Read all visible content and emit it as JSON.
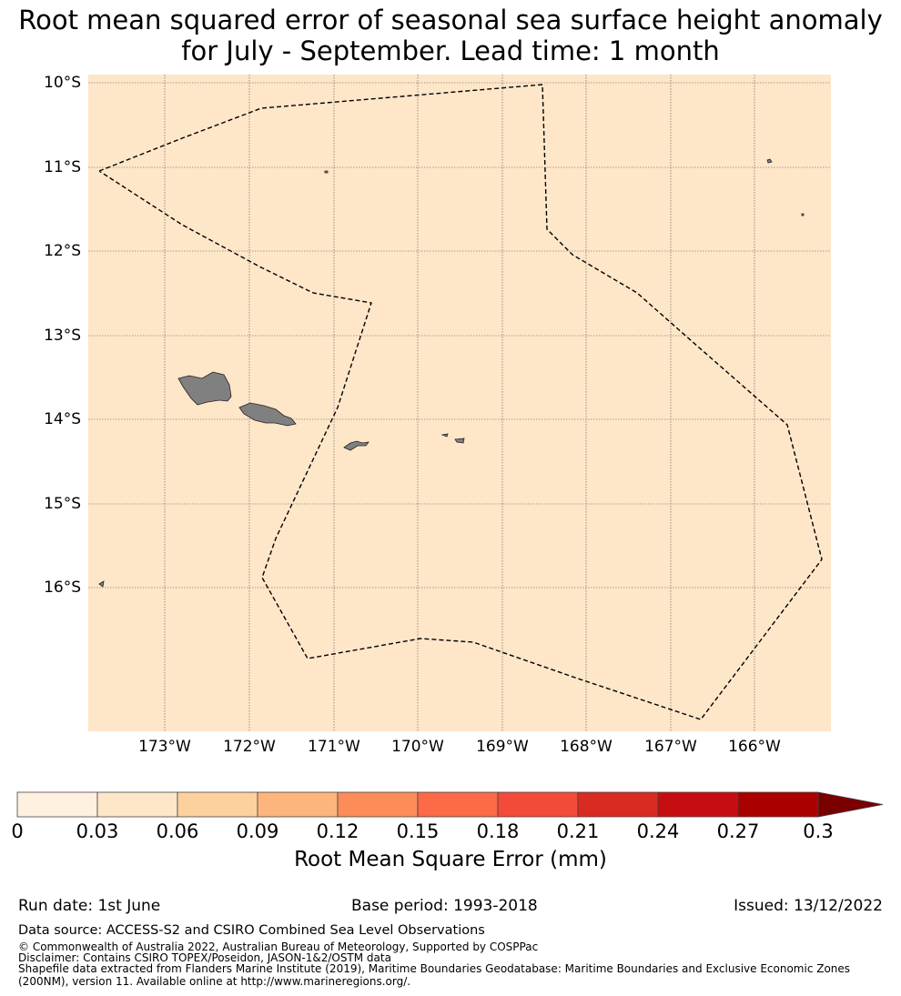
{
  "title": {
    "line1": "Root mean squared error of seasonal sea surface height anomaly",
    "line2": "for July - September. Lead time: 1 month"
  },
  "map": {
    "lat_labels": [
      "10°S",
      "11°S",
      "12°S",
      "13°S",
      "14°S",
      "15°S",
      "16°S"
    ],
    "lon_labels": [
      "173°W",
      "172°W",
      "171°W",
      "170°W",
      "169°W",
      "168°W",
      "167°W",
      "166°W"
    ],
    "ocean_color": "#fee6c9",
    "land_color": "#808080",
    "grid": "dotted",
    "eez_boundary": "dashed black line"
  },
  "colorbar": {
    "ticks": [
      "0",
      "0.03",
      "0.06",
      "0.09",
      "0.12",
      "0.15",
      "0.18",
      "0.21",
      "0.24",
      "0.27",
      "0.3"
    ],
    "colors": [
      "#fff0e0",
      "#fee6c9",
      "#fdd19e",
      "#fcb57c",
      "#fc8d59",
      "#fc6a48",
      "#f34a39",
      "#d92b22",
      "#c60d12",
      "#ab0000",
      "#7a0000"
    ],
    "label": "Root Mean Square Error (mm)",
    "extend": "max"
  },
  "footer": {
    "run_date": "Run date: 1st June",
    "base_period": "Base period: 1993-2018",
    "issued": "Issued: 13/12/2022",
    "data_source": "Data source: ACCESS-S2 and CSIRO Combined Sea Level Observations",
    "copyright": "© Commonwealth of Australia 2022, Australian Bureau of Meteorology, Supported by COSPPac",
    "disclaimer": "Disclaimer: Contains CSIRO TOPEX/Poseidon, JASON-1&2/OSTM data",
    "shapefile": "Shapefile data extracted from Flanders Marine Institute (2019), Maritime Boundaries Geodatabase: Maritime Boundaries and Exclusive Economic Zones (200NM), version 11. Available online at http://www.marineregions.org/."
  }
}
